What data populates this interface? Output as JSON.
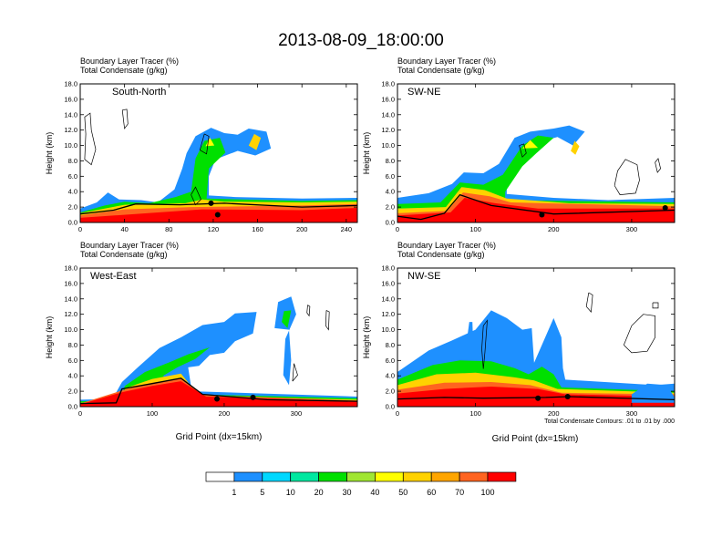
{
  "figure": {
    "title": "2013-08-09_18:00:00",
    "subtitle_line1": "Boundary Layer Tracer   (%)",
    "subtitle_line2": "Total Condensate   (g/kg)",
    "ylabel": "Height (km)",
    "xlabel": "Grid Point (dx=15km)",
    "contour_note": "Total Condensate Contours: .01 to .01 by .000"
  },
  "colorbar": {
    "labels": [
      "1",
      "5",
      "10",
      "20",
      "30",
      "40",
      "50",
      "60",
      "70",
      "100"
    ],
    "colors": [
      "#ffffff",
      "#1e90ff",
      "#00d8ff",
      "#00e8a0",
      "#00e000",
      "#a0e632",
      "#ffff00",
      "#ffd200",
      "#ffa500",
      "#ff6420",
      "#ff0000"
    ]
  },
  "chart_data": [
    {
      "type": "area",
      "panel": "South-North",
      "ylim": [
        0,
        18
      ],
      "yticks": [
        "0.0",
        "2.0",
        "4.0",
        "6.0",
        "8.0",
        "10.0",
        "12.0",
        "14.0",
        "16.0",
        "18.0"
      ],
      "xlim": [
        0,
        250
      ],
      "xticks": [
        "0",
        "40",
        "80",
        "120",
        "160",
        "200",
        "240"
      ]
    },
    {
      "type": "area",
      "panel": "SW-NE",
      "ylim": [
        0,
        18
      ],
      "yticks": [
        "0.0",
        "2.0",
        "4.0",
        "6.0",
        "8.0",
        "10.0",
        "12.0",
        "14.0",
        "16.0",
        "18.0"
      ],
      "xlim": [
        0,
        355
      ],
      "xticks": [
        "0",
        "100",
        "200",
        "300"
      ]
    },
    {
      "type": "area",
      "panel": "West-East",
      "ylim": [
        0,
        18
      ],
      "yticks": [
        "0.0",
        "2.0",
        "4.0",
        "6.0",
        "8.0",
        "10.0",
        "12.0",
        "14.0",
        "16.0",
        "18.0"
      ],
      "xlim": [
        0,
        385
      ],
      "xticks": [
        "0",
        "100",
        "200",
        "300"
      ]
    },
    {
      "type": "area",
      "panel": "NW-SE",
      "ylim": [
        0,
        18
      ],
      "yticks": [
        "0.0",
        "2.0",
        "4.0",
        "6.0",
        "8.0",
        "10.0",
        "12.0",
        "14.0",
        "16.0",
        "18.0"
      ],
      "xlim": [
        0,
        355
      ],
      "xticks": [
        "0",
        "100",
        "200",
        "300"
      ]
    }
  ]
}
